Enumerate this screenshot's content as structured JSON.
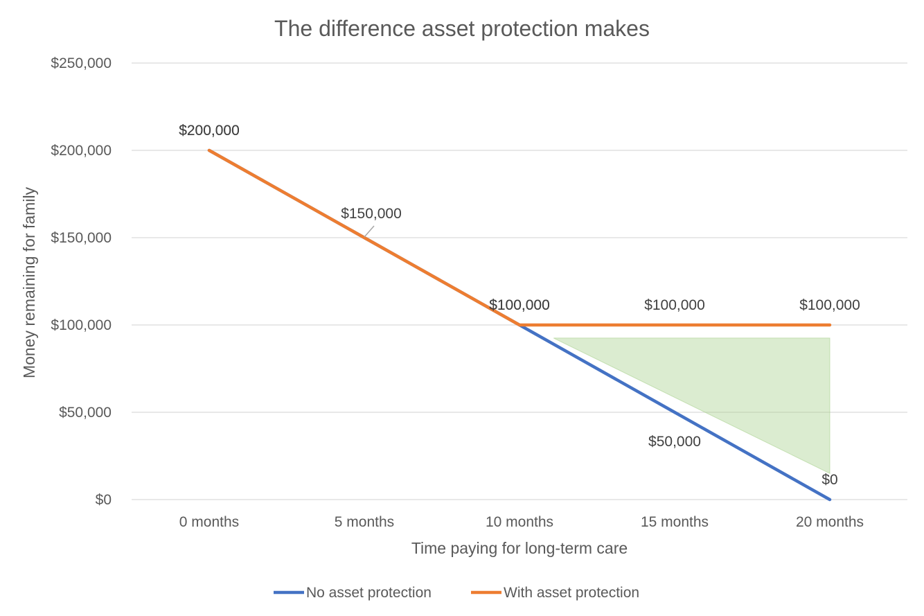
{
  "chart_data": {
    "type": "line",
    "title": "The difference asset protection makes",
    "xlabel": "Time paying for long-term care",
    "ylabel": "Money remaining for family",
    "categories": [
      "0 months",
      "5 months",
      "10 months",
      "15 months",
      "20 months"
    ],
    "ylim": [
      0,
      250000
    ],
    "yticks": [
      0,
      50000,
      100000,
      150000,
      200000,
      250000
    ],
    "ytick_labels": [
      "$0",
      "$50,000",
      "$100,000",
      "$150,000",
      "$200,000",
      "$250,000"
    ],
    "grid": true,
    "legend_position": "bottom",
    "series": [
      {
        "name": "No asset protection",
        "color": "#4472c4",
        "values": [
          200000,
          150000,
          100000,
          50000,
          0
        ],
        "labels": [
          "$200,000",
          "$150,000",
          "$100,000",
          "$50,000",
          "$0"
        ]
      },
      {
        "name": "With asset protection",
        "color": "#ed7d31",
        "values": [
          200000,
          150000,
          100000,
          100000,
          100000
        ],
        "labels": [
          "$200,000",
          "",
          "$100,000",
          "$100,000",
          "$100,000"
        ]
      }
    ],
    "shaded_region": {
      "color": "#a9d18e",
      "opacity": 0.42,
      "vertices": [
        [
          11.1,
          92500
        ],
        [
          20,
          92500
        ],
        [
          20,
          15000
        ]
      ]
    }
  }
}
